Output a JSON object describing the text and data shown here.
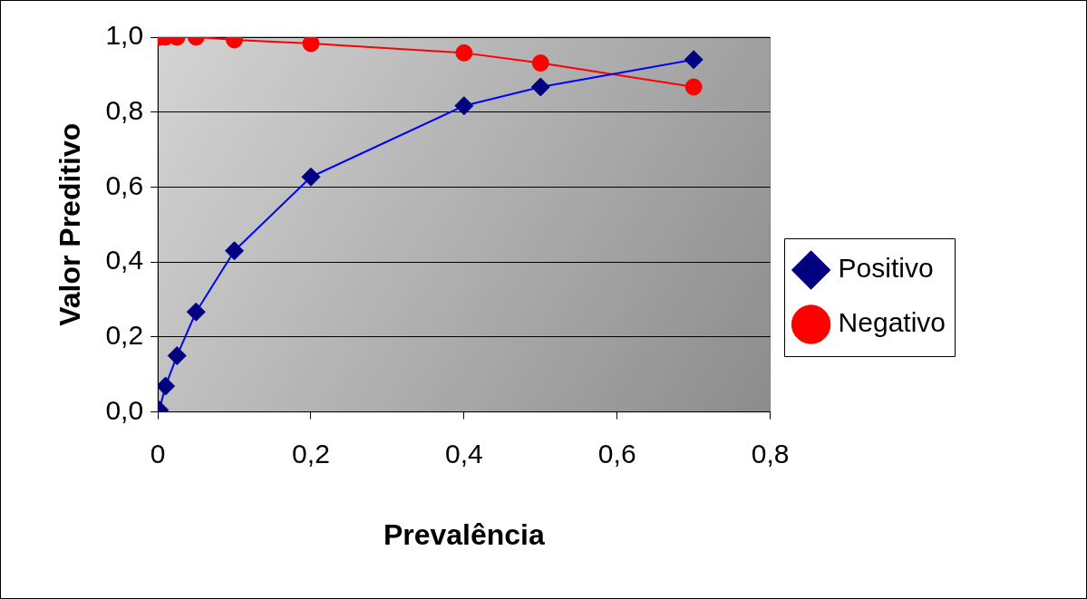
{
  "chart_data": {
    "type": "line",
    "xlabel": "Prevalência",
    "ylabel": "Valor Preditivo",
    "xlim": [
      0,
      0.8
    ],
    "xticks": [
      {
        "value": 0,
        "label": "0"
      },
      {
        "value": 0.2,
        "label": "0,2"
      },
      {
        "value": 0.4,
        "label": "0,4"
      },
      {
        "value": 0.6,
        "label": "0,6"
      },
      {
        "value": 0.8,
        "label": "0,8"
      }
    ],
    "ylim": [
      0,
      1
    ],
    "yticks": [
      {
        "value": 0,
        "label": "0,0"
      },
      {
        "value": 0.2,
        "label": "0,2"
      },
      {
        "value": 0.4,
        "label": "0,4"
      },
      {
        "value": 0.6,
        "label": "0,6"
      },
      {
        "value": 0.8,
        "label": "0,8"
      },
      {
        "value": 1,
        "label": "1,0"
      }
    ],
    "grid": "y",
    "legend": "right",
    "line_style": "solid",
    "series": [
      {
        "name": "Positivo",
        "color": "#0000ff",
        "marker": "diamond",
        "x": [
          0.002,
          0.01,
          0.025,
          0.05,
          0.1,
          0.2,
          0.4,
          0.5,
          0.7
        ],
        "values": [
          0.005,
          0.069,
          0.15,
          0.267,
          0.43,
          0.627,
          0.817,
          0.867,
          0.94
        ]
      },
      {
        "name": "Negativo",
        "color": "#ff0000",
        "marker": "circle",
        "x": [
          0.002,
          0.01,
          0.025,
          0.05,
          0.1,
          0.2,
          0.4,
          0.5,
          0.7
        ],
        "values": [
          1.0,
          1.0,
          1.0,
          1.0,
          0.993,
          0.983,
          0.958,
          0.931,
          0.867
        ]
      }
    ]
  }
}
